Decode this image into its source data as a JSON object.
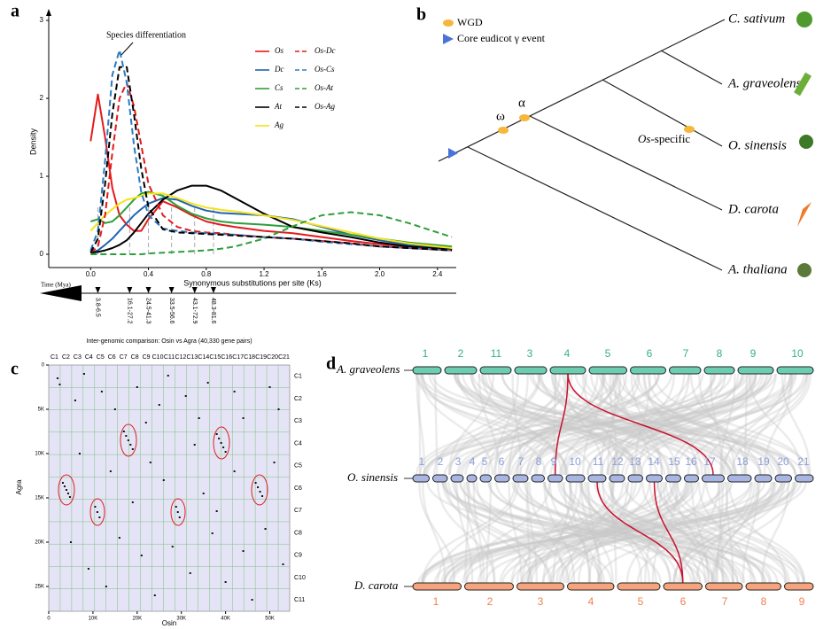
{
  "figure": {
    "panel_labels": [
      "a",
      "b",
      "c",
      "d"
    ]
  },
  "chart_data": [
    {
      "type": "line",
      "annotation": "Species differentiation",
      "ylabel": "Density",
      "xlabel": "Synonymous substitutions per site (Ks)",
      "time_label": "Time (Mya)",
      "x": [
        0,
        0.05,
        0.1,
        0.15,
        0.2,
        0.25,
        0.3,
        0.35,
        0.4,
        0.5,
        0.6,
        0.7,
        0.8,
        0.9,
        1.0,
        1.2,
        1.4,
        1.6,
        1.8,
        2.0,
        2.2,
        2.5
      ],
      "series": [
        {
          "name": "Os",
          "color": "#e41a1c",
          "dashed": false,
          "values": [
            1.45,
            2.05,
            1.5,
            0.85,
            0.5,
            0.38,
            0.3,
            0.3,
            0.45,
            0.68,
            0.6,
            0.5,
            0.42,
            0.38,
            0.35,
            0.3,
            0.27,
            0.22,
            0.17,
            0.13,
            0.1,
            0.07
          ]
        },
        {
          "name": "Dc",
          "color": "#1f64b0",
          "dashed": false,
          "values": [
            0.02,
            0.05,
            0.12,
            0.2,
            0.3,
            0.4,
            0.5,
            0.58,
            0.65,
            0.72,
            0.7,
            0.62,
            0.56,
            0.53,
            0.52,
            0.5,
            0.45,
            0.35,
            0.25,
            0.18,
            0.12,
            0.08
          ]
        },
        {
          "name": "Cs",
          "color": "#2e9e3a",
          "dashed": false,
          "values": [
            0.42,
            0.45,
            0.4,
            0.42,
            0.5,
            0.6,
            0.7,
            0.78,
            0.8,
            0.75,
            0.62,
            0.52,
            0.46,
            0.42,
            0.4,
            0.38,
            0.35,
            0.3,
            0.25,
            0.2,
            0.15,
            0.1
          ]
        },
        {
          "name": "At",
          "color": "#000000",
          "dashed": false,
          "values": [
            0.02,
            0.03,
            0.05,
            0.08,
            0.12,
            0.18,
            0.28,
            0.4,
            0.52,
            0.7,
            0.82,
            0.88,
            0.88,
            0.82,
            0.72,
            0.52,
            0.35,
            0.28,
            0.22,
            0.15,
            0.1,
            0.06
          ]
        },
        {
          "name": "Ag",
          "color": "#f5e31a",
          "dashed": false,
          "values": [
            0.3,
            0.4,
            0.5,
            0.58,
            0.65,
            0.7,
            0.72,
            0.75,
            0.78,
            0.78,
            0.72,
            0.65,
            0.6,
            0.57,
            0.55,
            0.5,
            0.44,
            0.36,
            0.28,
            0.2,
            0.14,
            0.08
          ]
        },
        {
          "name": "Os-Dc",
          "color": "#e41a1c",
          "dashed": true,
          "values": [
            0.02,
            0.1,
            0.5,
            1.3,
            2.0,
            2.2,
            1.9,
            1.4,
            0.9,
            0.5,
            0.35,
            0.3,
            0.28,
            0.27,
            0.25,
            0.22,
            0.2,
            0.17,
            0.14,
            0.1,
            0.08,
            0.05
          ]
        },
        {
          "name": "Os-Cs",
          "color": "#2b7bc4",
          "dashed": true,
          "values": [
            0.05,
            0.3,
            1.2,
            2.3,
            2.62,
            2.2,
            1.4,
            0.8,
            0.5,
            0.33,
            0.3,
            0.28,
            0.27,
            0.26,
            0.25,
            0.22,
            0.2,
            0.16,
            0.13,
            0.1,
            0.08,
            0.05
          ]
        },
        {
          "name": "Os-At",
          "color": "#2e9e3a",
          "dashed": true,
          "values": [
            0,
            0,
            0,
            0,
            0,
            0,
            0,
            0,
            0.01,
            0.02,
            0.03,
            0.04,
            0.05,
            0.07,
            0.1,
            0.2,
            0.36,
            0.5,
            0.54,
            0.5,
            0.4,
            0.22
          ]
        },
        {
          "name": "Os-Ag",
          "color": "#000000",
          "dashed": true,
          "values": [
            0.02,
            0.2,
            0.9,
            1.8,
            2.4,
            2.4,
            1.8,
            1.1,
            0.6,
            0.32,
            0.28,
            0.27,
            0.26,
            0.25,
            0.24,
            0.22,
            0.2,
            0.17,
            0.14,
            0.1,
            0.08,
            0.05
          ]
        }
      ],
      "xlim": [
        -0.29,
        2.53
      ],
      "ylim": [
        0,
        3.08
      ],
      "xticks": [
        {
          "value": 0,
          "label": "0.0"
        },
        0.4,
        0.8,
        1.2,
        1.6,
        {
          "value": 2,
          "label": "2.0"
        },
        2.4
      ],
      "yticks": [
        0,
        1,
        2,
        3
      ],
      "time_marks": [
        {
          "ks": 0.05,
          "label": "3.8-6.5"
        },
        {
          "ks": 0.27,
          "label": "16.1-27.2"
        },
        {
          "ks": 0.4,
          "label": "24.5-41.3"
        },
        {
          "ks": 0.56,
          "label": "33.5-56.6"
        },
        {
          "ks": 0.72,
          "label": "43.1-72.9"
        },
        {
          "ks": 0.85,
          "label": "48.3-81.6"
        }
      ]
    },
    {
      "type": "scatter",
      "title": "Inter-genomic comparison: Osin vs Agra (40,330 gene pairs)",
      "xlabel": "Osin",
      "ylabel": "Agra",
      "color": "#111111",
      "x_categories": [
        "C1",
        "C2",
        "C3",
        "C4",
        "C5",
        "C6",
        "C7",
        "C8",
        "C9",
        "C10",
        "C11",
        "C12",
        "C13",
        "C14",
        "C15",
        "C16",
        "C17",
        "C18",
        "C19",
        "C20",
        "C21"
      ],
      "y_categories": [
        "C1",
        "C2",
        "C3",
        "C4",
        "C5",
        "C6",
        "C7",
        "C8",
        "C9",
        "C10",
        "C11"
      ],
      "xlim": [
        0,
        54500
      ],
      "ylim": [
        0,
        27800
      ],
      "xticks": [
        0,
        {
          "value": 10000,
          "label": "10K"
        },
        {
          "value": 20000,
          "label": "20K"
        },
        {
          "value": 30000,
          "label": "30K"
        },
        {
          "value": 40000,
          "label": "40K"
        },
        {
          "value": 50000,
          "label": "50K"
        }
      ],
      "yticks": [
        0,
        {
          "value": 5000,
          "label": "5K"
        },
        {
          "value": 10000,
          "label": "10K"
        },
        {
          "value": 15000,
          "label": "15K"
        },
        {
          "value": 20000,
          "label": "20K"
        },
        {
          "value": 25000,
          "label": "25K"
        }
      ],
      "x": [
        17000,
        17500,
        18000,
        18500,
        19000,
        38000,
        38500,
        39000,
        39500,
        40000,
        3200,
        3600,
        4000,
        4400,
        4800,
        10500,
        11000,
        11500,
        28800,
        29200,
        29600,
        46800,
        47300,
        47800,
        48300,
        2000,
        2500,
        6000,
        8000,
        12000,
        15000,
        20000,
        22000,
        25000,
        27000,
        31000,
        34000,
        36000,
        42000,
        44000,
        50000,
        52000,
        7000,
        14000,
        23000,
        26000,
        33000,
        35000,
        42000,
        51000,
        5000,
        9000,
        13000,
        16000,
        21000,
        24000,
        28000,
        32000,
        37000,
        40000,
        44000,
        46000,
        49000,
        53000,
        19000,
        38000
      ],
      "values": [
        7500,
        8000,
        8500,
        9000,
        9500,
        7800,
        8300,
        8800,
        9300,
        9800,
        13300,
        13700,
        14100,
        14500,
        14900,
        16000,
        16600,
        17200,
        16000,
        16600,
        17200,
        13300,
        13800,
        14300,
        14800,
        1500,
        2200,
        4000,
        1000,
        3000,
        5000,
        2500,
        6500,
        4500,
        1200,
        3500,
        6000,
        2000,
        3000,
        6000,
        2500,
        5000,
        10000,
        12000,
        11000,
        13000,
        9000,
        14500,
        12000,
        11000,
        20000,
        23000,
        25000,
        19500,
        21500,
        26000,
        20500,
        23500,
        19000,
        24500,
        21000,
        26500,
        18500,
        22500,
        15500,
        16500
      ]
    }
  ],
  "tree": {
    "legend": [
      "WGD",
      "Core eudicot γ event"
    ],
    "wgd_labels": [
      "ω",
      "α"
    ],
    "os_specific": [
      "Os",
      "-specific"
    ],
    "leaves": [
      "C. sativum",
      "A. graveolens",
      "O. sinensis",
      "D. carota",
      "A. thaliana"
    ]
  },
  "synteny": {
    "genomes": [
      {
        "name": "A. graveolens",
        "chromosomes": [
          "1",
          "2",
          "11",
          "3",
          "4",
          "5",
          "6",
          "7",
          "8",
          "9",
          "10"
        ]
      },
      {
        "name": "O. sinensis",
        "chromosomes": [
          "1",
          "2",
          "3",
          "4",
          "5",
          "6",
          "7",
          "8",
          "9",
          "10",
          "11",
          "12",
          "13",
          "14",
          "15",
          "16",
          "17",
          "18",
          "19",
          "20",
          "21"
        ]
      },
      {
        "name": "D. carota",
        "chromosomes": [
          "1",
          "2",
          "3",
          "4",
          "5",
          "6",
          "7",
          "8",
          "9"
        ]
      }
    ]
  }
}
